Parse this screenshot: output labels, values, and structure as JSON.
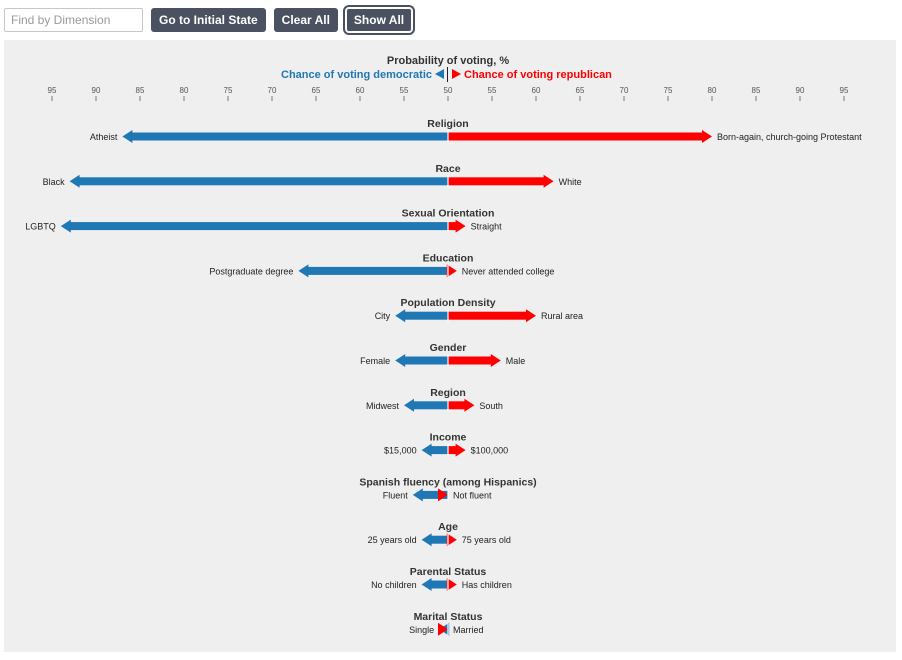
{
  "toolbar": {
    "search_placeholder": "Find by Dimension",
    "initial_state_label": "Go to Initial State",
    "clear_all_label": "Clear All",
    "show_all_label": "Show All"
  },
  "colors": {
    "democratic": "#1f77b4",
    "republican": "#ff0000",
    "panel": "#efefef"
  },
  "chart_data": {
    "type": "bar",
    "title": "Probability of voting, %",
    "legend": {
      "left": "Chance of voting democratic",
      "right": "Chance of voting republican"
    },
    "axis_ticks": [
      95,
      90,
      85,
      80,
      75,
      70,
      65,
      60,
      55,
      50,
      55,
      60,
      65,
      70,
      75,
      80,
      85,
      90,
      95
    ],
    "axis_range": [
      95,
      95
    ],
    "center": 50,
    "dimensions": [
      {
        "name": "Religion",
        "dem_label": "Atheist",
        "dem_value": 87,
        "rep_label": "Born-again, church-going Protestant",
        "rep_value": 80
      },
      {
        "name": "Race",
        "dem_label": "Black",
        "dem_value": 93,
        "rep_label": "White",
        "rep_value": 62
      },
      {
        "name": "Sexual Orientation",
        "dem_label": "LGBTQ",
        "dem_value": 94,
        "rep_label": "Straight",
        "rep_value": 52
      },
      {
        "name": "Education",
        "dem_label": "Postgraduate degree",
        "dem_value": 67,
        "rep_label": "Never attended college",
        "rep_value": 51
      },
      {
        "name": "Population Density",
        "dem_label": "City",
        "dem_value": 56,
        "rep_label": "Rural area",
        "rep_value": 60
      },
      {
        "name": "Gender",
        "dem_label": "Female",
        "dem_value": 56,
        "rep_label": "Male",
        "rep_value": 56
      },
      {
        "name": "Region",
        "dem_label": "Midwest",
        "dem_value": 55,
        "rep_label": "South",
        "rep_value": 53
      },
      {
        "name": "Income",
        "dem_label": "$15,000",
        "dem_value": 53,
        "rep_label": "$100,000",
        "rep_value": 52
      },
      {
        "name": "Spanish fluency (among Hispanics)",
        "dem_label": "Fluent",
        "dem_value": 54,
        "rep_label": "Not fluent",
        "rep_value": 50
      },
      {
        "name": "Age",
        "dem_label": "25 years old",
        "dem_value": 53,
        "rep_label": "75 years old",
        "rep_value": 51
      },
      {
        "name": "Parental Status",
        "dem_label": "No children",
        "dem_value": 53,
        "rep_label": "Has children",
        "rep_value": 51
      },
      {
        "name": "Marital Status",
        "dem_label": "Single",
        "dem_value": 51,
        "rep_label": "Married",
        "rep_value": 50
      }
    ]
  }
}
